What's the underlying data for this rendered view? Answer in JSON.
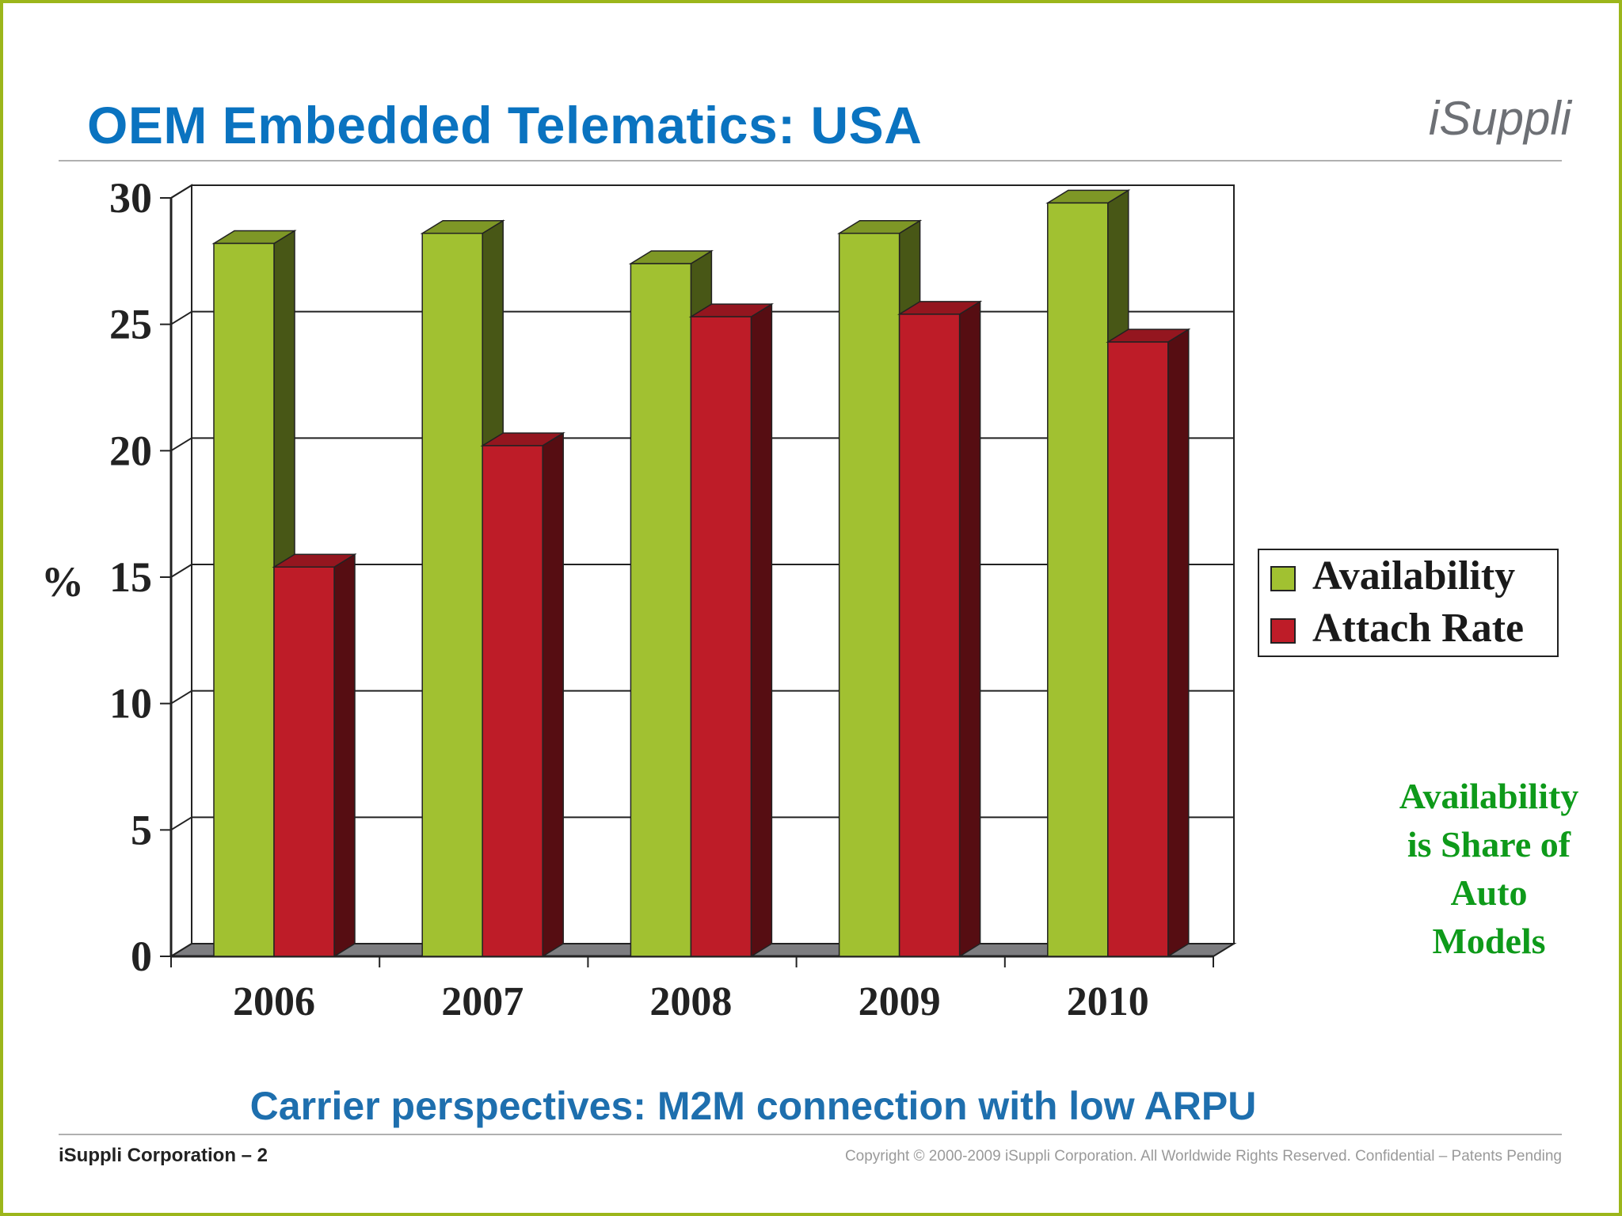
{
  "header": {
    "title": "OEM Embedded Telematics: USA",
    "logo_text": "iSuppli"
  },
  "chart_data": {
    "type": "bar",
    "categories": [
      "2006",
      "2007",
      "2008",
      "2009",
      "2010"
    ],
    "series": [
      {
        "name": "Availability",
        "values": [
          28.2,
          28.6,
          27.4,
          28.6,
          29.8
        ],
        "color": "#a1c131"
      },
      {
        "name": "Attach Rate",
        "values": [
          15.4,
          20.2,
          25.3,
          25.4,
          24.3
        ],
        "color": "#be1c28"
      }
    ],
    "ylabel": "%",
    "ylim": [
      0,
      30
    ],
    "yticks": [
      "0",
      "5",
      "10",
      "15",
      "20",
      "25",
      "30"
    ],
    "grid": true,
    "three_d": true,
    "legend_position": "right"
  },
  "note": {
    "lines": [
      "Availability",
      "is Share of",
      "Auto",
      "Models"
    ]
  },
  "subtitle": "Carrier perspectives: M2M connection with low ARPU",
  "footer": {
    "left": "iSuppli Corporation – 2",
    "right": "Copyright © 2000-2009  iSuppli Corporation.  All Worldwide Rights Reserved. Confidential – Patents Pending"
  }
}
